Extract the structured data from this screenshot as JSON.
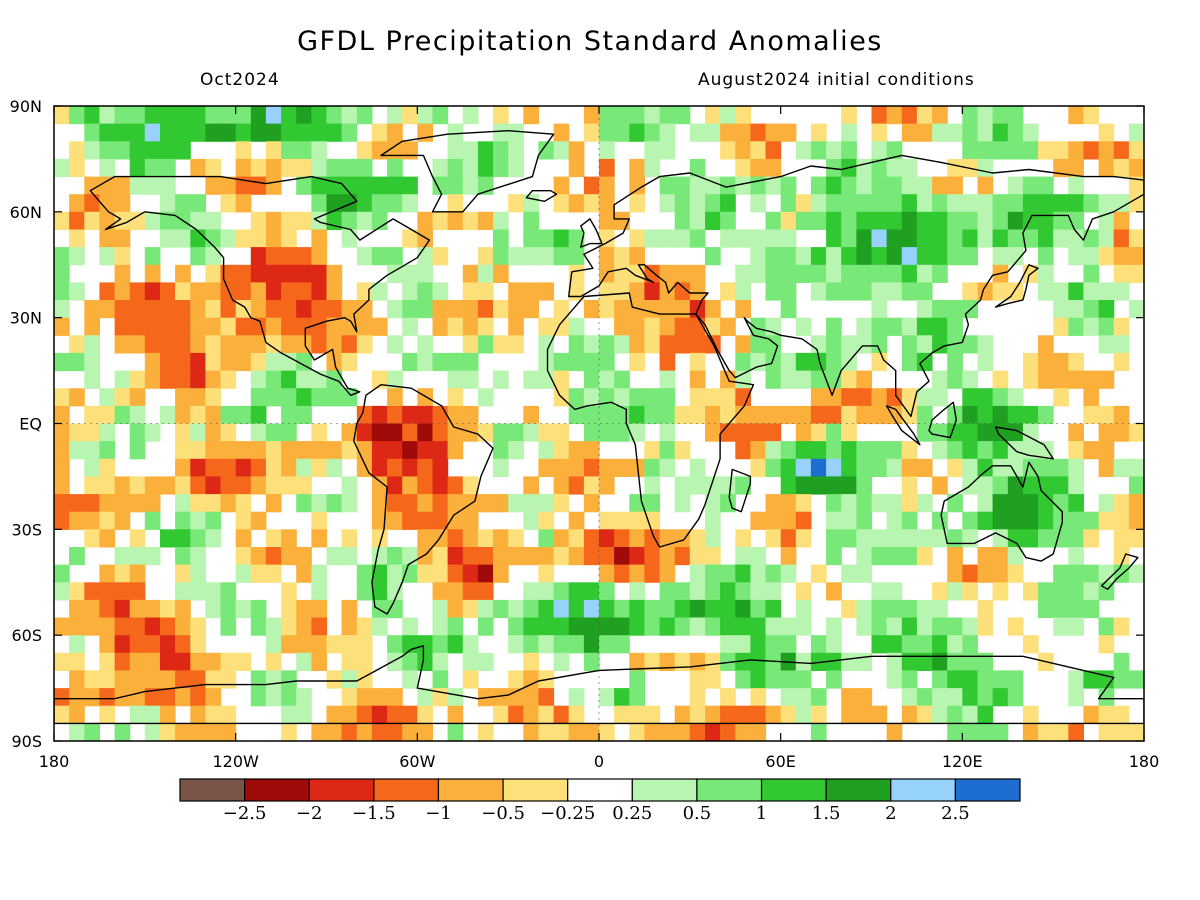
{
  "title": "GFDL Precipitation Standard Anomalies",
  "subtitle_left": "Oct2024",
  "subtitle_right": "August2024 initial conditions",
  "lat_labels": [
    "90N",
    "60N",
    "30N",
    "EQ",
    "30S",
    "60S",
    "90S"
  ],
  "lon_labels": [
    "180",
    "120W",
    "60W",
    "0",
    "60E",
    "120E",
    "180"
  ],
  "colorbar": {
    "labels": [
      "−2.5",
      "−2",
      "−1.5",
      "−1",
      "−0.5",
      "−0.25",
      "0.25",
      "0.5",
      "1",
      "1.5",
      "2",
      "2.5"
    ],
    "colors": [
      "#7a5448",
      "#a00a08",
      "#dc2814",
      "#f5681c",
      "#fbb03c",
      "#fde07a",
      "#ffffff",
      "#b8f5b0",
      "#78e878",
      "#32c832",
      "#20a020",
      "#96d2fa",
      "#1e6ed2"
    ]
  },
  "map": {
    "type": "global precipitation standardized anomaly map",
    "projection": "equirectangular",
    "lon_range": [
      -180,
      180
    ],
    "lat_range": [
      -90,
      90
    ],
    "coastlines": true,
    "background_level_color": "#ffffff"
  }
}
